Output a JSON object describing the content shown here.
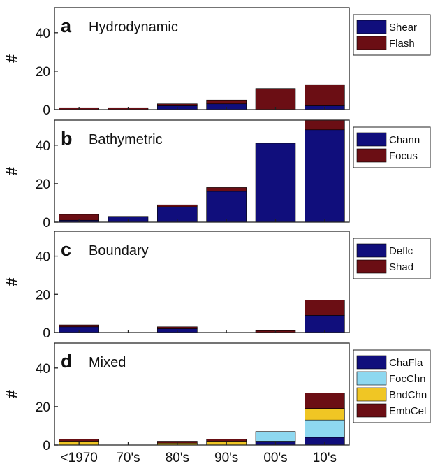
{
  "figure": {
    "categories": [
      "<1970",
      "70's",
      "80's",
      "90's",
      "00's",
      "10's"
    ]
  },
  "colors": {
    "navy": "#100e7c",
    "maroon": "#6b0e14",
    "light_blue": "#8ed8f0",
    "gold": "#f0c624"
  },
  "chart_data": [
    {
      "type": "bar",
      "stacked": true,
      "panel_label": "a",
      "title": "Hydrodynamic",
      "ylabel": "#",
      "ylim": [
        0,
        53
      ],
      "yticks": [
        0,
        20,
        40
      ],
      "categories": [
        "<1970",
        "70's",
        "80's",
        "90's",
        "00's",
        "10's"
      ],
      "legend": "right",
      "series": [
        {
          "name": "Shear",
          "color": "#100e7c",
          "values": [
            0,
            0,
            2,
            3,
            0,
            2
          ]
        },
        {
          "name": "Flash",
          "color": "#6b0e14",
          "values": [
            1,
            1,
            1,
            2,
            11,
            11
          ]
        }
      ]
    },
    {
      "type": "bar",
      "stacked": true,
      "panel_label": "b",
      "title": "Bathymetric",
      "ylabel": "#",
      "ylim": [
        0,
        53
      ],
      "yticks": [
        0,
        20,
        40
      ],
      "categories": [
        "<1970",
        "70's",
        "80's",
        "90's",
        "00's",
        "10's"
      ],
      "legend": "right",
      "series": [
        {
          "name": "Chann",
          "color": "#100e7c",
          "values": [
            1,
            3,
            8,
            16,
            41,
            48
          ]
        },
        {
          "name": "Focus",
          "color": "#6b0e14",
          "values": [
            3,
            0,
            1,
            2,
            0,
            5
          ]
        }
      ]
    },
    {
      "type": "bar",
      "stacked": true,
      "panel_label": "c",
      "title": "Boundary",
      "ylabel": "#",
      "ylim": [
        0,
        53
      ],
      "yticks": [
        0,
        20,
        40
      ],
      "categories": [
        "<1970",
        "70's",
        "80's",
        "90's",
        "00's",
        "10's"
      ],
      "legend": "right",
      "series": [
        {
          "name": "Deflc",
          "color": "#100e7c",
          "values": [
            3,
            0,
            2,
            0,
            0,
            9
          ]
        },
        {
          "name": "Shad",
          "color": "#6b0e14",
          "values": [
            1,
            0,
            1,
            0,
            1,
            8
          ]
        }
      ]
    },
    {
      "type": "bar",
      "stacked": true,
      "panel_label": "d",
      "title": "Mixed",
      "ylabel": "#",
      "ylim": [
        0,
        53
      ],
      "yticks": [
        0,
        20,
        40
      ],
      "categories": [
        "<1970",
        "70's",
        "80's",
        "90's",
        "00's",
        "10's"
      ],
      "legend": "right",
      "series": [
        {
          "name": "ChaFla",
          "color": "#100e7c",
          "values": [
            0,
            0,
            0,
            0,
            2,
            4
          ]
        },
        {
          "name": "FocChn",
          "color": "#8ed8f0",
          "values": [
            0,
            0,
            0,
            0,
            5,
            9
          ]
        },
        {
          "name": "BndChn",
          "color": "#f0c624",
          "values": [
            2,
            0,
            1,
            2,
            0,
            6
          ]
        },
        {
          "name": "EmbCel",
          "color": "#6b0e14",
          "values": [
            1,
            0,
            1,
            1,
            0,
            8
          ]
        }
      ]
    }
  ]
}
